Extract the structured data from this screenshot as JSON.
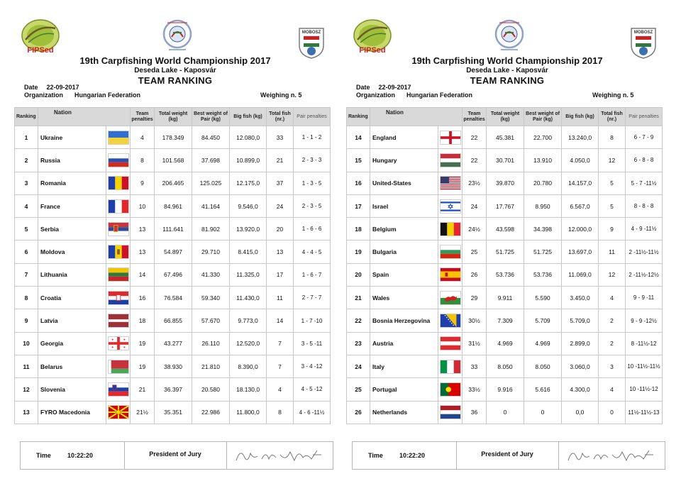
{
  "header": {
    "logo_left_text": "FIPSed",
    "logo_right_text": "MOBOSZ",
    "title": "19th Carpfishing World Championship 2017",
    "venue": "Deseda Lake - Kaposvár",
    "ranking_title": "TEAM RANKING",
    "date_label": "Date",
    "date_value": "22-09-2017",
    "org_label": "Organization",
    "org_value": "Hungarian Federation",
    "weighing": "Weighing n. 5"
  },
  "columns": {
    "ranking": "Ranking",
    "nation": "Nation",
    "team_penalties": "Team penalties",
    "total_weight": "Total weight (kg)",
    "best_weight": "Best weight of Pair (kg)",
    "big_fish": "Big fish (kg)",
    "total_fish": "Total fish (nr.)",
    "pair_penalties": "Pair penalties"
  },
  "footer": {
    "time_label": "Time",
    "time_value": "10:22:20",
    "jury_label": "President of Jury"
  },
  "left_rows": [
    {
      "rank": "1",
      "nation": "Ukraine",
      "flag": "ukraine",
      "team_pen": "4",
      "total_weight": "178.349",
      "best_weight": "84.450",
      "big_fish": "12.080,0",
      "total_fish": "33",
      "pair_pen": "1 - 1 - 2"
    },
    {
      "rank": "2",
      "nation": "Russia",
      "flag": "russia",
      "team_pen": "8",
      "total_weight": "101.568",
      "best_weight": "37.698",
      "big_fish": "10.899,0",
      "total_fish": "21",
      "pair_pen": "2 - 3 - 3"
    },
    {
      "rank": "3",
      "nation": "Romania",
      "flag": "romania",
      "team_pen": "9",
      "total_weight": "206.465",
      "best_weight": "125.025",
      "big_fish": "12.175,0",
      "total_fish": "37",
      "pair_pen": "1 - 3 - 5"
    },
    {
      "rank": "4",
      "nation": "France",
      "flag": "france",
      "team_pen": "10",
      "total_weight": "84.961",
      "best_weight": "41.164",
      "big_fish": "9.546,0",
      "total_fish": "24",
      "pair_pen": "2 - 3 - 5"
    },
    {
      "rank": "5",
      "nation": "Serbia",
      "flag": "serbia",
      "team_pen": "13",
      "total_weight": "111.641",
      "best_weight": "81.902",
      "big_fish": "13.920,0",
      "total_fish": "20",
      "pair_pen": "1 - 6 - 6"
    },
    {
      "rank": "6",
      "nation": "Moldova",
      "flag": "moldova",
      "team_pen": "13",
      "total_weight": "54.897",
      "best_weight": "29.710",
      "big_fish": "8.415,0",
      "total_fish": "13",
      "pair_pen": "4 - 4 - 5"
    },
    {
      "rank": "7",
      "nation": "Lithuania",
      "flag": "lithuania",
      "team_pen": "14",
      "total_weight": "67.496",
      "best_weight": "41.330",
      "big_fish": "11.325,0",
      "total_fish": "17",
      "pair_pen": "1 - 6 - 7"
    },
    {
      "rank": "8",
      "nation": "Croatia",
      "flag": "croatia",
      "team_pen": "16",
      "total_weight": "76.584",
      "best_weight": "59.340",
      "big_fish": "11.430,0",
      "total_fish": "11",
      "pair_pen": "2 - 7 - 7"
    },
    {
      "rank": "9",
      "nation": "Latvia",
      "flag": "latvia",
      "team_pen": "18",
      "total_weight": "66.855",
      "best_weight": "57.670",
      "big_fish": "9.773,0",
      "total_fish": "14",
      "pair_pen": "1 - 7 -10"
    },
    {
      "rank": "10",
      "nation": "Georgia",
      "flag": "georgia",
      "team_pen": "19",
      "total_weight": "43.277",
      "best_weight": "26.110",
      "big_fish": "12.520,0",
      "total_fish": "7",
      "pair_pen": "3 - 5 -11"
    },
    {
      "rank": "11",
      "nation": "Belarus",
      "flag": "belarus",
      "team_pen": "19",
      "total_weight": "38.930",
      "best_weight": "21.810",
      "big_fish": "8.390,0",
      "total_fish": "7",
      "pair_pen": "3 - 4 -12"
    },
    {
      "rank": "12",
      "nation": "Slovenia",
      "flag": "slovenia",
      "team_pen": "21",
      "total_weight": "36.397",
      "best_weight": "20.580",
      "big_fish": "18.130,0",
      "total_fish": "4",
      "pair_pen": "4 - 5 -12"
    },
    {
      "rank": "13",
      "nation": "FYRO Macedonia",
      "flag": "macedonia",
      "team_pen": "21½",
      "total_weight": "35.351",
      "best_weight": "22.986",
      "big_fish": "11.800,0",
      "total_fish": "8",
      "pair_pen": "4 - 6 -11½"
    }
  ],
  "right_rows": [
    {
      "rank": "14",
      "nation": "England",
      "flag": "england",
      "team_pen": "22",
      "total_weight": "45.381",
      "best_weight": "22.700",
      "big_fish": "13.240,0",
      "total_fish": "8",
      "pair_pen": "6 - 7 - 9"
    },
    {
      "rank": "15",
      "nation": "Hungary",
      "flag": "hungary",
      "team_pen": "22",
      "total_weight": "30.701",
      "best_weight": "13.910",
      "big_fish": "4.050,0",
      "total_fish": "12",
      "pair_pen": "6 - 8 - 8"
    },
    {
      "rank": "16",
      "nation": "United-States",
      "flag": "usa",
      "team_pen": "23½",
      "total_weight": "39.870",
      "best_weight": "20.780",
      "big_fish": "14.157,0",
      "total_fish": "5",
      "pair_pen": "5 - 7 -11½"
    },
    {
      "rank": "17",
      "nation": "Israel",
      "flag": "israel",
      "team_pen": "24",
      "total_weight": "17.767",
      "best_weight": "8.950",
      "big_fish": "6.567,0",
      "total_fish": "5",
      "pair_pen": "8 - 8 - 8"
    },
    {
      "rank": "18",
      "nation": "Belgium",
      "flag": "belgium",
      "team_pen": "24½",
      "total_weight": "43.598",
      "best_weight": "34.398",
      "big_fish": "12.000,0",
      "total_fish": "9",
      "pair_pen": "4 - 9 -11½"
    },
    {
      "rank": "19",
      "nation": "Bulgaria",
      "flag": "bulgaria",
      "team_pen": "25",
      "total_weight": "51.725",
      "best_weight": "51.725",
      "big_fish": "13.697,0",
      "total_fish": "11",
      "pair_pen": "2 -11½-11½"
    },
    {
      "rank": "20",
      "nation": "Spain",
      "flag": "spain",
      "team_pen": "26",
      "total_weight": "53.736",
      "best_weight": "53.736",
      "big_fish": "11.069,0",
      "total_fish": "12",
      "pair_pen": "2 -11½-12½"
    },
    {
      "rank": "21",
      "nation": "Wales",
      "flag": "wales",
      "team_pen": "29",
      "total_weight": "9.911",
      "best_weight": "5.590",
      "big_fish": "3.450,0",
      "total_fish": "4",
      "pair_pen": "9 - 9 -11"
    },
    {
      "rank": "22",
      "nation": "Bosnia Herzegovina",
      "flag": "bosnia",
      "team_pen": "30½",
      "total_weight": "7.309",
      "best_weight": "5.709",
      "big_fish": "5.709,0",
      "total_fish": "2",
      "pair_pen": "9 - 9 -12½"
    },
    {
      "rank": "23",
      "nation": "Austria",
      "flag": "austria",
      "team_pen": "31½",
      "total_weight": "4.969",
      "best_weight": "4.969",
      "big_fish": "2.899,0",
      "total_fish": "2",
      "pair_pen": "8 -11½-12"
    },
    {
      "rank": "24",
      "nation": "Italy",
      "flag": "italy",
      "team_pen": "33",
      "total_weight": "8.050",
      "best_weight": "8.050",
      "big_fish": "3.060,0",
      "total_fish": "3",
      "pair_pen": "10 -11½-11½"
    },
    {
      "rank": "25",
      "nation": "Portugal",
      "flag": "portugal",
      "team_pen": "33½",
      "total_weight": "9.916",
      "best_weight": "5.616",
      "big_fish": "4.300,0",
      "total_fish": "4",
      "pair_pen": "10 -11½-12"
    },
    {
      "rank": "26",
      "nation": "Netherlands",
      "flag": "netherlands",
      "team_pen": "36",
      "total_weight": "0",
      "best_weight": "0",
      "big_fish": "0,0",
      "total_fish": "0",
      "pair_pen": "11½-11½-13"
    }
  ]
}
